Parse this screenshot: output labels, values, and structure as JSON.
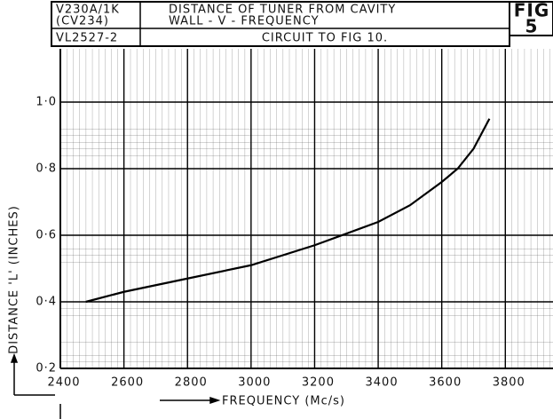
{
  "chart_data": {
    "type": "line",
    "title": [
      "DISTANCE OF TUNER FROM CAVITY",
      "WALL - V - FREQUENCY"
    ],
    "subtitle": "CIRCUIT TO FIG 10.",
    "annotations": [
      "V230A/1K",
      "(CV234)",
      "VL2527-2",
      "FIG",
      "5"
    ],
    "x_label": "FREQUENCY (Mc/s)",
    "y_label": "DISTANCE 'L' (INCHES)",
    "x": [
      2480,
      2600,
      2800,
      3000,
      3200,
      3400,
      3500,
      3600,
      3650,
      3700,
      3750
    ],
    "series": [
      {
        "name": "distance",
        "color": "#000000",
        "values": [
          0.4,
          0.43,
          0.47,
          0.51,
          0.57,
          0.64,
          0.69,
          0.76,
          0.8,
          0.86,
          0.95
        ]
      }
    ],
    "xlim": [
      2400,
      3950
    ],
    "ylim": [
      0.2,
      1.16
    ],
    "xticks": [
      2400,
      2600,
      2800,
      3000,
      3200,
      3400,
      3600,
      3800
    ],
    "yticks": [
      {
        "value": 0.2,
        "label": "0·2"
      },
      {
        "value": 0.4,
        "label": "0·4"
      },
      {
        "value": 0.6,
        "label": "0·6"
      },
      {
        "value": 0.8,
        "label": "0·8"
      },
      {
        "value": 1.0,
        "label": "1·0"
      }
    ],
    "grid": true
  }
}
